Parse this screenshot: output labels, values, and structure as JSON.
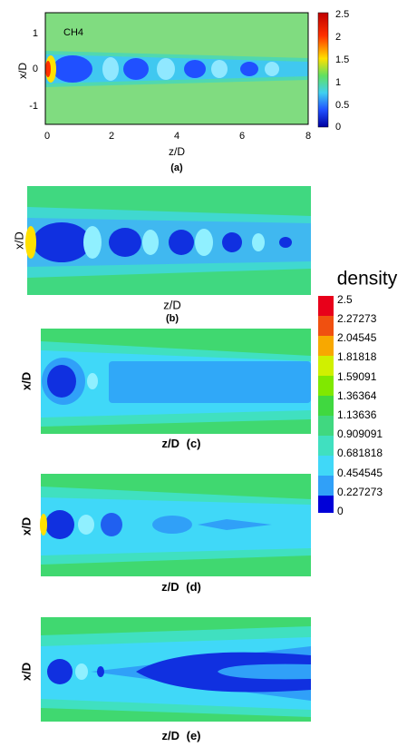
{
  "panels": [
    {
      "label": "(a)",
      "species": "CH4",
      "y_axis_label": "x/D",
      "x_axis_label": "z/D",
      "y_ticks": [
        "1",
        "0",
        "-1"
      ],
      "x_ticks": [
        "0",
        "2",
        "4",
        "6",
        "8"
      ],
      "colorbar_ticks": [
        "2.5",
        "2",
        "1.5",
        "1",
        "0.5",
        "0"
      ]
    },
    {
      "label": "(b)",
      "y_axis_label": "x/D",
      "x_axis_label": "z/D"
    },
    {
      "label": "(c)",
      "y_axis_label": "x/D",
      "x_axis_label": "z/D"
    },
    {
      "label": "(d)",
      "y_axis_label": "x/D",
      "x_axis_label": "z/D"
    },
    {
      "label": "(e)",
      "y_axis_label": "x/D",
      "x_axis_label": "z/D"
    }
  ],
  "legend": {
    "title": "density",
    "ticks": [
      "2.5",
      "2.27273",
      "2.04545",
      "1.81818",
      "1.59091",
      "1.36364",
      "1.13636",
      "0.909091",
      "0.681818",
      "0.454545",
      "0.227273",
      "0"
    ]
  }
}
